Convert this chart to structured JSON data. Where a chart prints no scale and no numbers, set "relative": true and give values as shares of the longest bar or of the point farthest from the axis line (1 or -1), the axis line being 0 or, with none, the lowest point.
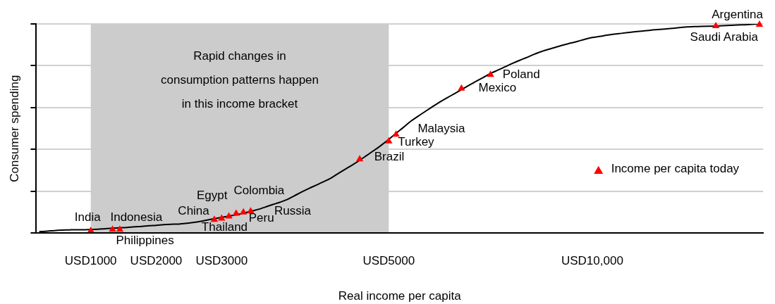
{
  "chart_data": {
    "type": "line",
    "xlabel": "Real income per capita",
    "ylabel": "Consumer spending",
    "relative": true,
    "grid": "y",
    "legend": "bottom right",
    "categories": [
      null,
      null,
      null,
      null,
      null,
      null,
      null,
      "USD1000",
      null,
      null,
      null,
      null,
      null,
      null,
      null,
      null,
      "USD2000",
      null,
      null,
      null,
      null,
      null,
      null,
      null,
      null,
      "USD3000",
      null,
      null,
      null,
      null,
      null,
      null,
      null,
      null,
      null,
      null,
      null,
      null,
      null,
      null,
      null,
      null,
      null,
      null,
      null,
      null,
      null,
      null,
      "USD5000",
      null,
      null,
      null,
      null,
      null,
      null,
      null,
      null,
      null,
      null,
      null,
      null,
      null,
      null,
      null,
      null,
      null,
      null,
      null,
      null,
      null,
      null,
      null,
      null,
      null,
      null,
      null,
      "USD10,000",
      null,
      null,
      null,
      null,
      null,
      null,
      null,
      null,
      null,
      null,
      null,
      null,
      null,
      null,
      null,
      null,
      null,
      null,
      null,
      null,
      null,
      null,
      null
    ],
    "bands": [
      {
        "axis": "x",
        "from": "USD1000",
        "to": "USD5000",
        "label": "Rapid changes in consumption patterns happen in this income bracket",
        "color": "#cccccc"
      }
    ],
    "series": [
      {
        "color": "#000000",
        "values": [
          0.007,
          0.009,
          0.012,
          0.014,
          0.015,
          0.016,
          0.016,
          0.017,
          0.018,
          0.021,
          0.023,
          0.025,
          0.027,
          0.03,
          0.032,
          0.035,
          0.037,
          0.04,
          0.042,
          0.043,
          0.046,
          0.05,
          0.055,
          0.062,
          0.069,
          0.075,
          0.081,
          0.087,
          0.095,
          0.104,
          0.113,
          0.124,
          0.136,
          0.147,
          0.16,
          0.178,
          0.196,
          0.213,
          0.229,
          0.245,
          0.262,
          0.284,
          0.305,
          0.326,
          0.348,
          0.372,
          0.396,
          0.421,
          0.448,
          0.477,
          0.505,
          0.534,
          0.558,
          0.581,
          0.604,
          0.626,
          0.646,
          0.666,
          0.686,
          0.706,
          0.725,
          0.744,
          0.763,
          0.779,
          0.795,
          0.811,
          0.826,
          0.84,
          0.855,
          0.868,
          0.879,
          0.889,
          0.899,
          0.908,
          0.917,
          0.927,
          0.935,
          0.94,
          0.946,
          0.951,
          0.955,
          0.959,
          0.963,
          0.966,
          0.97,
          0.973,
          0.976,
          0.979,
          0.982,
          0.986,
          0.987,
          0.988,
          0.989,
          0.99,
          0.992,
          0.993,
          0.995,
          0.996,
          0.998,
          1
        ]
      },
      {
        "type": "scatter",
        "name": "Income per capita today",
        "color": "#ff0000",
        "marker": "triangle",
        "values": [
          null,
          null,
          null,
          null,
          null,
          null,
          null,
          0.011,
          null,
          null,
          0.017,
          0.017,
          null,
          null,
          null,
          null,
          null,
          null,
          null,
          null,
          null,
          null,
          null,
          null,
          0.064,
          0.07,
          0.08,
          0.093,
          0.099,
          0.104,
          null,
          null,
          null,
          null,
          null,
          null,
          null,
          null,
          null,
          null,
          null,
          null,
          null,
          null,
          0.353,
          null,
          null,
          null,
          0.439,
          0.471,
          null,
          null,
          null,
          null,
          null,
          null,
          null,
          null,
          0.691,
          null,
          null,
          null,
          0.757,
          null,
          null,
          null,
          null,
          null,
          null,
          null,
          null,
          null,
          null,
          null,
          null,
          null,
          null,
          null,
          null,
          null,
          null,
          null,
          null,
          null,
          null,
          null,
          null,
          null,
          null,
          null,
          null,
          null,
          null,
          0.99,
          null,
          null,
          null,
          null,
          null,
          0.997
        ]
      }
    ],
    "annotations": [
      "India",
      "Indonesia",
      "Philippines",
      "China",
      "Thailand",
      "Egypt",
      "Peru",
      "Colombia",
      "Russia",
      "Brazil",
      "Turkey",
      "Malaysia",
      "Mexico",
      "Poland",
      "Saudi Arabia",
      "Argentina"
    ]
  }
}
